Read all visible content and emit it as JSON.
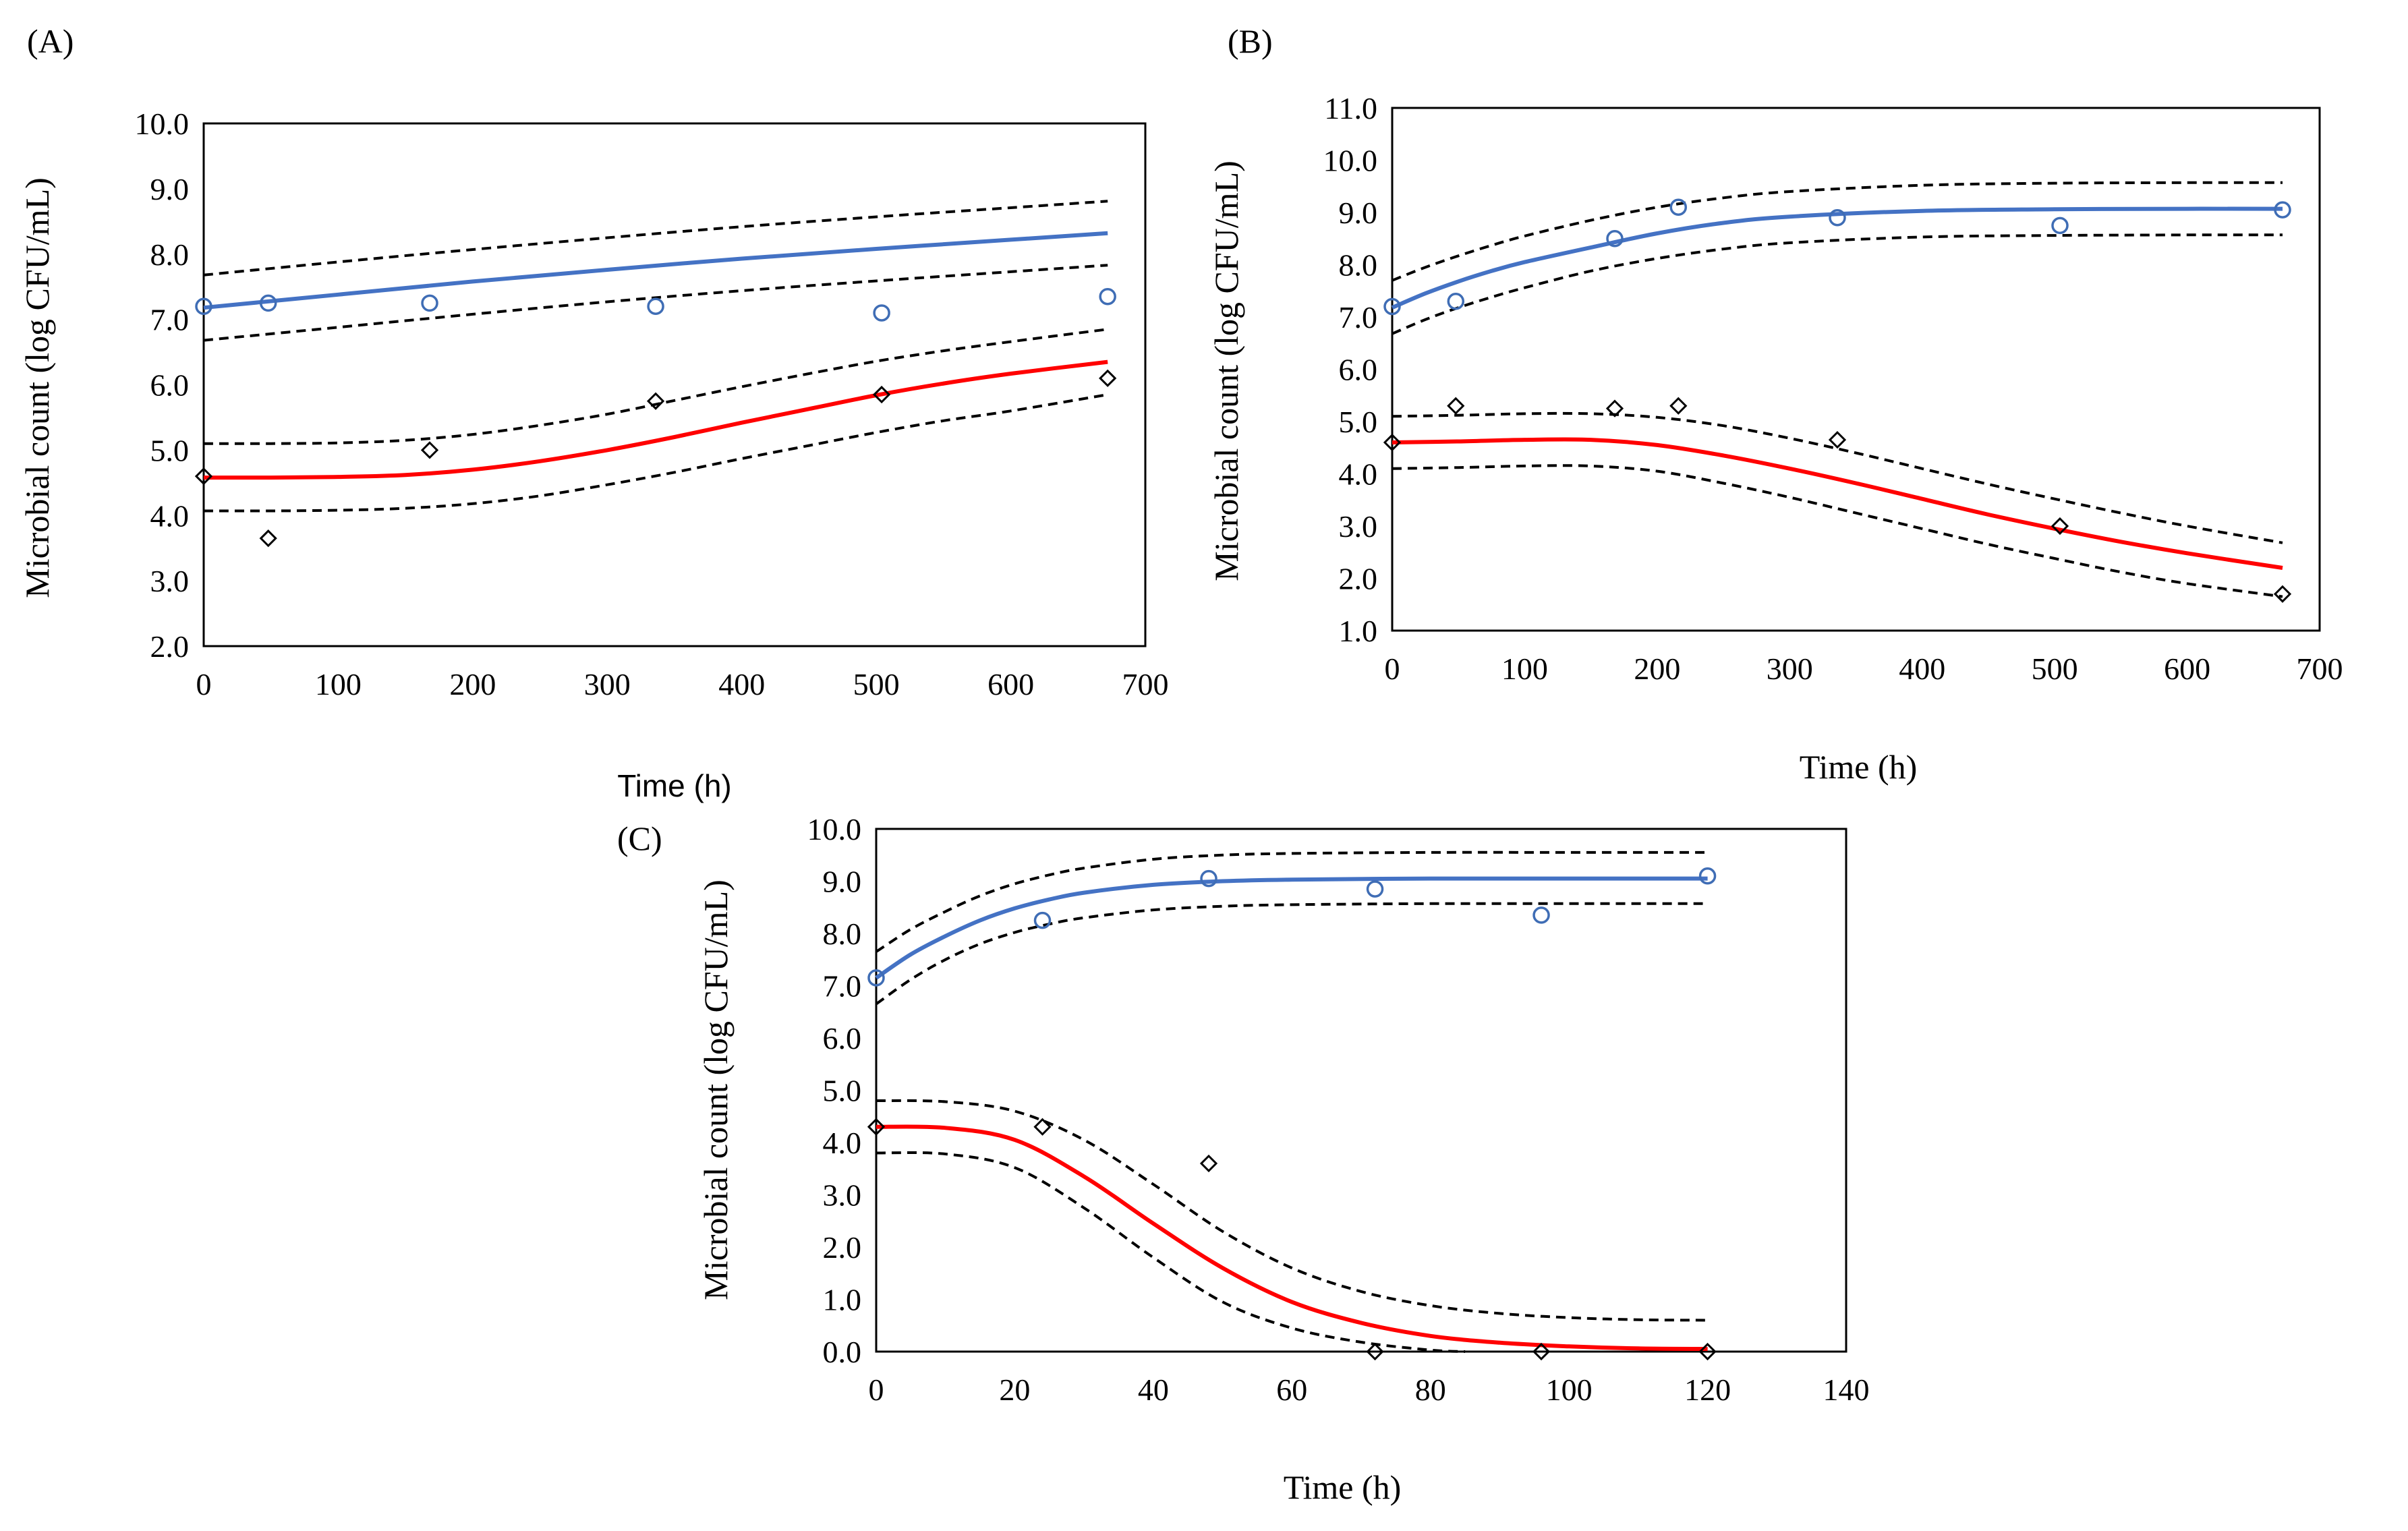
{
  "chart_data": [
    {
      "id": "A",
      "type": "line",
      "panel_label": "(A)",
      "xlabel": "Time (h)",
      "ylabel": "Microbial count (log CFU/mL)",
      "xlim": [
        0,
        700
      ],
      "ylim": [
        2.0,
        10.0
      ],
      "xticks": [
        0,
        100,
        200,
        300,
        400,
        500,
        600,
        700
      ],
      "xtick_labels": [
        "0",
        "100",
        "200",
        "300",
        "400",
        "500",
        "600",
        "700"
      ],
      "yticks": [
        2,
        3,
        4,
        5,
        6,
        7,
        8,
        9,
        10
      ],
      "ytick_labels": [
        "2.0",
        "3.0",
        "4.0",
        "5.0",
        "6.0",
        "7.0",
        "8.0",
        "9.0",
        "10.0"
      ],
      "series": [
        {
          "name": "observed-circles",
          "kind": "scatter",
          "marker": "circle",
          "color": "#3F6DB5",
          "x": [
            0,
            48,
            168,
            336,
            504,
            672
          ],
          "y": [
            7.2,
            7.25,
            7.25,
            7.2,
            7.1,
            7.35
          ]
        },
        {
          "name": "observed-diamonds",
          "kind": "scatter",
          "marker": "diamond",
          "color": "#000000",
          "x": [
            0,
            48,
            168,
            336,
            504,
            672
          ],
          "y": [
            4.6,
            3.65,
            5.0,
            5.75,
            5.85,
            6.1
          ]
        },
        {
          "name": "fit-blue",
          "kind": "line",
          "color": "#4472C4",
          "x": [
            0,
            100,
            200,
            300,
            400,
            500,
            600,
            672
          ],
          "y": [
            7.18,
            7.38,
            7.58,
            7.76,
            7.93,
            8.08,
            8.22,
            8.32
          ]
        },
        {
          "name": "ci-blue-upper",
          "kind": "dashed",
          "color": "#000000",
          "x": [
            0,
            100,
            200,
            300,
            400,
            500,
            600,
            672
          ],
          "y": [
            7.68,
            7.88,
            8.07,
            8.25,
            8.42,
            8.57,
            8.71,
            8.81
          ]
        },
        {
          "name": "ci-blue-lower",
          "kind": "dashed",
          "color": "#000000",
          "x": [
            0,
            100,
            200,
            300,
            400,
            500,
            600,
            672
          ],
          "y": [
            6.68,
            6.88,
            7.08,
            7.27,
            7.44,
            7.59,
            7.73,
            7.83
          ]
        },
        {
          "name": "fit-red",
          "kind": "line",
          "color": "#FF0000",
          "x": [
            0,
            50,
            100,
            150,
            200,
            250,
            300,
            350,
            400,
            450,
            500,
            550,
            600,
            672
          ],
          "y": [
            4.58,
            4.58,
            4.59,
            4.62,
            4.7,
            4.83,
            5.0,
            5.2,
            5.42,
            5.63,
            5.84,
            6.02,
            6.17,
            6.35
          ]
        },
        {
          "name": "ci-red-upper",
          "kind": "dashed",
          "color": "#000000",
          "x": [
            0,
            50,
            100,
            150,
            200,
            250,
            300,
            350,
            400,
            450,
            500,
            550,
            600,
            672
          ],
          "y": [
            5.1,
            5.1,
            5.11,
            5.15,
            5.24,
            5.38,
            5.55,
            5.76,
            5.97,
            6.17,
            6.36,
            6.52,
            6.66,
            6.85
          ]
        },
        {
          "name": "ci-red-lower",
          "kind": "dashed",
          "color": "#000000",
          "x": [
            0,
            50,
            100,
            150,
            200,
            250,
            300,
            350,
            400,
            450,
            500,
            550,
            600,
            672
          ],
          "y": [
            4.07,
            4.07,
            4.08,
            4.11,
            4.18,
            4.3,
            4.47,
            4.66,
            4.87,
            5.07,
            5.27,
            5.45,
            5.6,
            5.85
          ]
        }
      ]
    },
    {
      "id": "B",
      "type": "line",
      "panel_label": "(B)",
      "xlabel": "Time (h)",
      "ylabel": "Microbial count (log CFU/mL)",
      "xlim": [
        0,
        700
      ],
      "ylim": [
        1.0,
        11.0
      ],
      "xticks": [
        0,
        100,
        200,
        300,
        400,
        500,
        600,
        700
      ],
      "xtick_labels": [
        "0",
        "100",
        "200",
        "300",
        "400",
        "500",
        "600",
        "700"
      ],
      "yticks": [
        1,
        2,
        3,
        4,
        5,
        6,
        7,
        8,
        9,
        10,
        11
      ],
      "ytick_labels": [
        "1.0",
        "2.0",
        "3.0",
        "4.0",
        "5.0",
        "6.0",
        "7.0",
        "8.0",
        "9.0",
        "10.0",
        "11.0"
      ],
      "series": [
        {
          "name": "observed-circles",
          "kind": "scatter",
          "marker": "circle",
          "color": "#3F6DB5",
          "x": [
            0,
            48,
            168,
            216,
            336,
            504,
            672
          ],
          "y": [
            7.2,
            7.3,
            8.5,
            9.1,
            8.9,
            8.75,
            9.05
          ]
        },
        {
          "name": "observed-diamonds",
          "kind": "scatter",
          "marker": "diamond",
          "color": "#000000",
          "x": [
            0,
            48,
            168,
            216,
            336,
            504,
            672
          ],
          "y": [
            4.6,
            5.3,
            5.25,
            5.3,
            4.65,
            3.0,
            1.7
          ]
        },
        {
          "name": "fit-blue",
          "kind": "line",
          "color": "#4472C4",
          "x": [
            0,
            25,
            50,
            75,
            100,
            150,
            200,
            250,
            300,
            400,
            500,
            600,
            672
          ],
          "y": [
            7.18,
            7.45,
            7.68,
            7.88,
            8.05,
            8.33,
            8.6,
            8.8,
            8.92,
            9.03,
            9.06,
            9.07,
            9.07
          ]
        },
        {
          "name": "ci-blue-upper",
          "kind": "dashed",
          "color": "#000000",
          "x": [
            0,
            25,
            50,
            75,
            100,
            150,
            200,
            250,
            300,
            400,
            500,
            600,
            672
          ],
          "y": [
            7.7,
            7.95,
            8.17,
            8.37,
            8.55,
            8.85,
            9.1,
            9.28,
            9.4,
            9.52,
            9.56,
            9.57,
            9.57
          ]
        },
        {
          "name": "ci-blue-lower",
          "kind": "dashed",
          "color": "#000000",
          "x": [
            0,
            25,
            50,
            75,
            100,
            150,
            200,
            250,
            300,
            400,
            500,
            600,
            672
          ],
          "y": [
            6.68,
            6.95,
            7.18,
            7.38,
            7.56,
            7.88,
            8.12,
            8.3,
            8.42,
            8.53,
            8.56,
            8.57,
            8.57
          ]
        },
        {
          "name": "fit-red",
          "kind": "line",
          "color": "#FF0000",
          "x": [
            0,
            50,
            100,
            150,
            200,
            250,
            300,
            350,
            400,
            450,
            500,
            550,
            600,
            672
          ],
          "y": [
            4.6,
            4.62,
            4.65,
            4.65,
            4.55,
            4.35,
            4.1,
            3.82,
            3.52,
            3.22,
            2.95,
            2.7,
            2.48,
            2.2
          ]
        },
        {
          "name": "ci-red-upper",
          "kind": "dashed",
          "color": "#000000",
          "x": [
            0,
            50,
            100,
            150,
            200,
            250,
            300,
            350,
            400,
            450,
            500,
            550,
            600,
            672
          ],
          "y": [
            5.1,
            5.12,
            5.15,
            5.15,
            5.08,
            4.92,
            4.68,
            4.4,
            4.1,
            3.8,
            3.52,
            3.25,
            3.0,
            2.68
          ]
        },
        {
          "name": "ci-red-lower",
          "kind": "dashed",
          "color": "#000000",
          "x": [
            0,
            50,
            100,
            150,
            200,
            250,
            300,
            350,
            400,
            450,
            500,
            550,
            600,
            672
          ],
          "y": [
            4.1,
            4.12,
            4.15,
            4.15,
            4.05,
            3.82,
            3.55,
            3.25,
            2.95,
            2.65,
            2.38,
            2.12,
            1.9,
            1.65
          ]
        }
      ]
    },
    {
      "id": "C",
      "type": "line",
      "panel_label": "(C)",
      "xlabel": "Time (h)",
      "ylabel": "Microbial count (log CFU/mL)",
      "xlim": [
        0,
        140
      ],
      "ylim": [
        0.0,
        10.0
      ],
      "xticks": [
        0,
        20,
        40,
        60,
        80,
        100,
        120,
        140
      ],
      "xtick_labels": [
        "0",
        "20",
        "40",
        "60",
        "80",
        "100",
        "120",
        "140"
      ],
      "yticks": [
        0,
        1,
        2,
        3,
        4,
        5,
        6,
        7,
        8,
        9,
        10
      ],
      "ytick_labels": [
        "0.0",
        "1.0",
        "2.0",
        "3.0",
        "4.0",
        "5.0",
        "6.0",
        "7.0",
        "8.0",
        "9.0",
        "10.0"
      ],
      "series": [
        {
          "name": "observed-circles",
          "kind": "scatter",
          "marker": "circle",
          "color": "#3F6DB5",
          "x": [
            0,
            24,
            48,
            72,
            96,
            120
          ],
          "y": [
            7.15,
            8.25,
            9.05,
            8.85,
            8.35,
            9.1
          ]
        },
        {
          "name": "observed-diamonds",
          "kind": "scatter",
          "marker": "diamond",
          "color": "#000000",
          "x": [
            0,
            24,
            48,
            72,
            96,
            120
          ],
          "y": [
            4.3,
            4.3,
            3.6,
            0.0,
            0.0,
            0.0
          ]
        },
        {
          "name": "fit-blue",
          "kind": "line",
          "color": "#4472C4",
          "x": [
            0,
            5,
            10,
            15,
            20,
            25,
            30,
            40,
            50,
            60,
            80,
            100,
            120
          ],
          "y": [
            7.15,
            7.6,
            7.95,
            8.25,
            8.48,
            8.65,
            8.78,
            8.93,
            9.0,
            9.03,
            9.05,
            9.05,
            9.05
          ]
        },
        {
          "name": "ci-blue-upper",
          "kind": "dashed",
          "color": "#000000",
          "x": [
            0,
            5,
            10,
            15,
            20,
            25,
            30,
            40,
            50,
            60,
            80,
            100,
            120
          ],
          "y": [
            7.65,
            8.08,
            8.42,
            8.72,
            8.95,
            9.12,
            9.25,
            9.42,
            9.5,
            9.53,
            9.55,
            9.55,
            9.55
          ]
        },
        {
          "name": "ci-blue-lower",
          "kind": "dashed",
          "color": "#000000",
          "x": [
            0,
            5,
            10,
            15,
            20,
            25,
            30,
            40,
            50,
            60,
            80,
            100,
            120
          ],
          "y": [
            6.65,
            7.12,
            7.5,
            7.8,
            8.02,
            8.18,
            8.3,
            8.45,
            8.52,
            8.55,
            8.57,
            8.57,
            8.57
          ]
        },
        {
          "name": "fit-red",
          "kind": "line",
          "color": "#FF0000",
          "x": [
            0,
            10,
            20,
            30,
            40,
            50,
            60,
            70,
            80,
            90,
            100,
            110,
            120
          ],
          "y": [
            4.3,
            4.28,
            4.05,
            3.35,
            2.45,
            1.6,
            0.95,
            0.55,
            0.3,
            0.17,
            0.1,
            0.06,
            0.05
          ]
        },
        {
          "name": "ci-red-upper",
          "kind": "dashed",
          "color": "#000000",
          "x": [
            0,
            10,
            20,
            30,
            40,
            50,
            60,
            70,
            80,
            90,
            100,
            110,
            120
          ],
          "y": [
            4.8,
            4.78,
            4.6,
            4.05,
            3.2,
            2.3,
            1.6,
            1.15,
            0.88,
            0.73,
            0.65,
            0.61,
            0.6
          ]
        },
        {
          "name": "ci-red-lower",
          "kind": "dashed",
          "color": "#000000",
          "x": [
            0,
            10,
            20,
            30,
            40,
            50,
            60,
            70,
            80,
            85
          ],
          "y": [
            3.8,
            3.78,
            3.52,
            2.75,
            1.8,
            0.95,
            0.45,
            0.18,
            0.03,
            0.0
          ]
        }
      ]
    }
  ]
}
